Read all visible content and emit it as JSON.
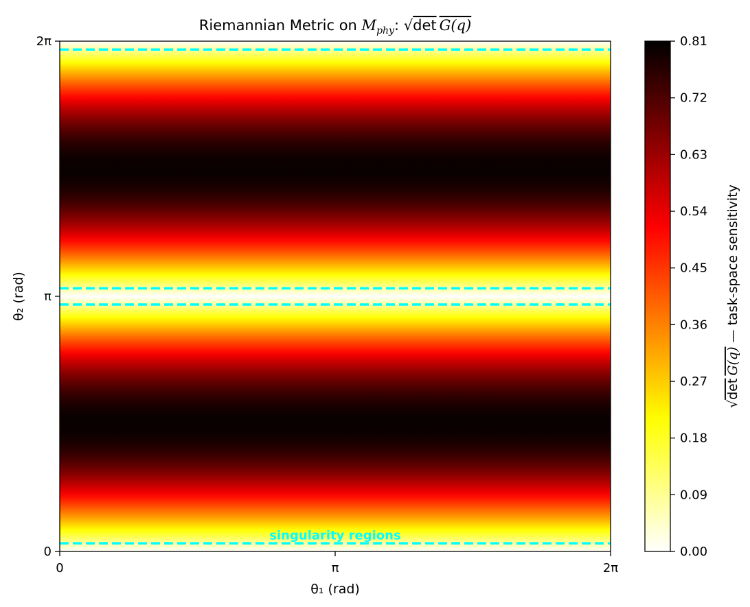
{
  "chart_data": {
    "type": "heatmap",
    "title": {
      "prefix": "Riemannian Metric on ",
      "manifold_symbol": "M",
      "manifold_subscript": "phy",
      "separator": ": ",
      "radicand_op": "det",
      "radicand_func": "G",
      "radicand_arg": "(q)"
    },
    "xlabel": "θ₁ (rad)",
    "ylabel": "θ₂ (rad)",
    "x_range": [
      0,
      6.2832
    ],
    "y_range": [
      0,
      6.2832
    ],
    "x_ticks": [
      {
        "value": 0,
        "label": "0"
      },
      {
        "value": 3.1416,
        "label": "π"
      },
      {
        "value": 6.2832,
        "label": "2π"
      }
    ],
    "y_ticks": [
      {
        "value": 0,
        "label": "0"
      },
      {
        "value": 3.1416,
        "label": "π"
      },
      {
        "value": 6.2832,
        "label": "2π"
      }
    ],
    "field": {
      "description_formula": "|sin(theta2)|",
      "depends_on": "theta2",
      "max_value": 0.8,
      "samples_theta2": [
        0,
        0.3927,
        0.7854,
        1.1781,
        1.5708,
        1.9635,
        2.3562,
        2.7489,
        3.1416,
        3.5343,
        3.927,
        4.3197,
        4.7124,
        5.1051,
        5.4978,
        5.8905,
        6.2832
      ],
      "samples_value": [
        0,
        0.306,
        0.566,
        0.739,
        0.8,
        0.739,
        0.566,
        0.306,
        0,
        0.306,
        0.566,
        0.739,
        0.8,
        0.739,
        0.566,
        0.306,
        0
      ]
    },
    "singularity_lines_theta2": [
      0.1,
      3.04,
      3.24,
      6.18
    ],
    "singularity_color": "#00ffff",
    "annotation": {
      "text": "singularity regions",
      "theta1": 3.1416,
      "theta2": 0.2
    },
    "colormap": "hot_r",
    "colorbar": {
      "min": 0.0,
      "max": 0.81,
      "ticks": [
        "0.00",
        "0.09",
        "0.18",
        "0.27",
        "0.36",
        "0.45",
        "0.54",
        "0.63",
        "0.72",
        "0.81"
      ],
      "tick_values": [
        0,
        0.09,
        0.18,
        0.27,
        0.36,
        0.45,
        0.54,
        0.63,
        0.72,
        0.81
      ],
      "label": {
        "radicand_op": "det",
        "radicand_func": "G",
        "radicand_arg": "(q)",
        "suffix": " — task-space sensitivity"
      }
    },
    "grid": false,
    "legend": "none"
  }
}
